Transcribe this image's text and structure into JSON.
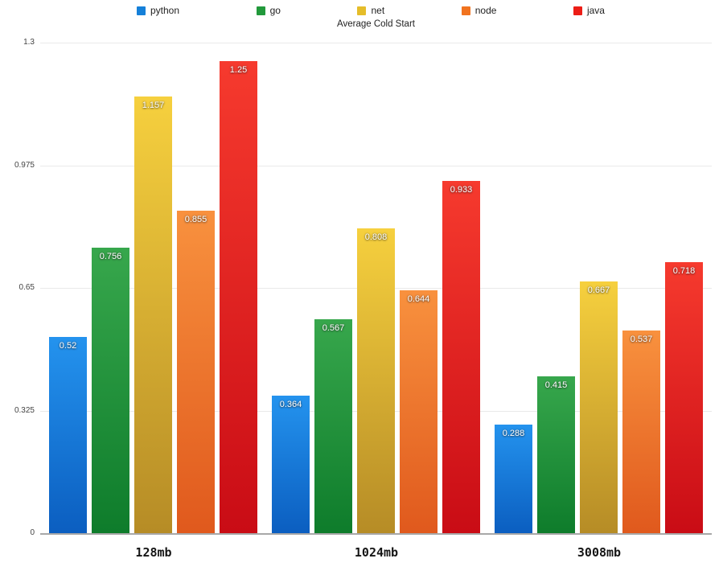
{
  "chart_data": {
    "type": "bar",
    "title": "Average Cold Start",
    "categories": [
      "128mb",
      "1024mb",
      "3008mb"
    ],
    "series": [
      {
        "name": "python",
        "legend_color": "#1580d9",
        "color_top": "#2493ee",
        "color_bottom": "#0b5ec0",
        "values": [
          0.52,
          0.364,
          0.288
        ]
      },
      {
        "name": "go",
        "legend_color": "#22993b",
        "color_top": "#37a74c",
        "color_bottom": "#0e7c2b",
        "values": [
          0.756,
          0.567,
          0.415
        ]
      },
      {
        "name": "net",
        "legend_color": "#e5bd2a",
        "color_top": "#f6d03e",
        "color_bottom": "#b68c26",
        "values": [
          1.157,
          0.808,
          0.667
        ]
      },
      {
        "name": "node",
        "legend_color": "#f1731f",
        "color_top": "#f8913e",
        "color_bottom": "#e0591d",
        "values": [
          0.855,
          0.644,
          0.537
        ]
      },
      {
        "name": "java",
        "legend_color": "#ec1d16",
        "color_top": "#f63a2e",
        "color_bottom": "#c90c15",
        "values": [
          1.25,
          0.933,
          0.718
        ]
      }
    ],
    "xlabel": "",
    "ylabel": "",
    "ylim": [
      0,
      1.3
    ],
    "yticks": [
      0,
      0.325,
      0.65,
      0.975,
      1.3
    ],
    "grid": true,
    "legend_position": "top",
    "value_labels": true
  }
}
